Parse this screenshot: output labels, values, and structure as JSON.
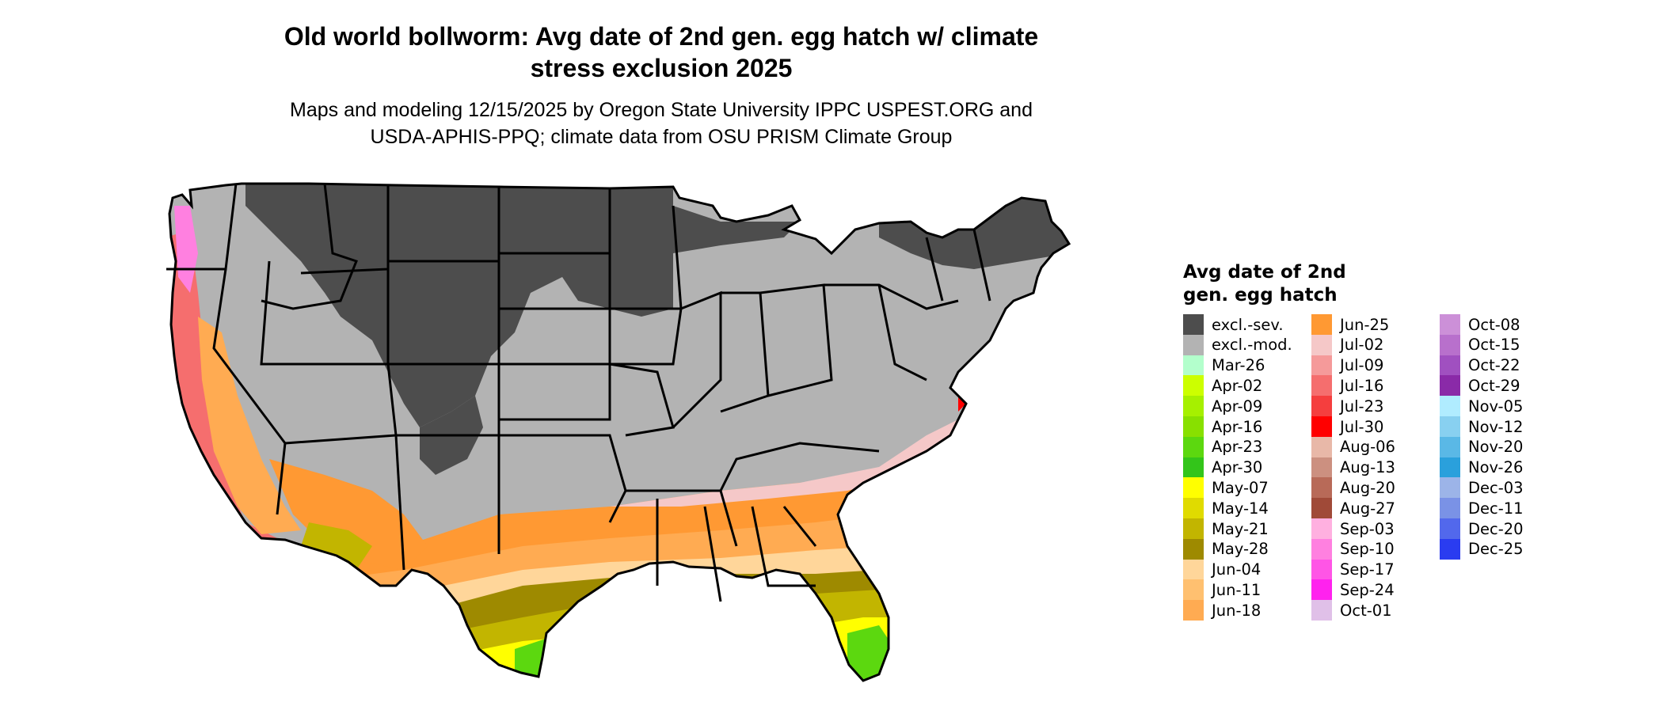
{
  "title": "Old world bollworm: Avg date of 2nd gen. egg hatch w/ climate stress exclusion 2025",
  "title_line1": "Old world bollworm: Avg date of 2nd gen. egg hatch w/ climate",
  "title_line2": "stress exclusion 2025",
  "subtitle_line1": "Maps and modeling 12/15/2025 by Oregon State University IPPC USPEST.ORG and",
  "subtitle_line2": "USDA-APHIS-PPQ; climate data from OSU PRISM Climate Group",
  "legend": {
    "title_line1": "Avg date of 2nd",
    "title_line2": "gen. egg hatch",
    "columns": [
      [
        {
          "label": "excl.-sev.",
          "color": "#4d4d4d"
        },
        {
          "label": "excl.-mod.",
          "color": "#b3b3b3"
        },
        {
          "label": "Mar-26",
          "color": "#b3ffcc"
        },
        {
          "label": "Apr-02",
          "color": "#ccff00"
        },
        {
          "label": "Apr-09",
          "color": "#a6f000"
        },
        {
          "label": "Apr-16",
          "color": "#88e000"
        },
        {
          "label": "Apr-23",
          "color": "#5cd80f"
        },
        {
          "label": "Apr-30",
          "color": "#33c51a"
        },
        {
          "label": "May-07",
          "color": "#ffff00"
        },
        {
          "label": "May-14",
          "color": "#e0db00"
        },
        {
          "label": "May-21",
          "color": "#c2b500"
        },
        {
          "label": "May-28",
          "color": "#9e8a00"
        },
        {
          "label": "Jun-04",
          "color": "#ffd69a"
        },
        {
          "label": "Jun-11",
          "color": "#ffc070"
        },
        {
          "label": "Jun-18",
          "color": "#ffab52"
        }
      ],
      [
        {
          "label": "Jun-25",
          "color": "#ff9933"
        },
        {
          "label": "Jul-02",
          "color": "#f5c8c8"
        },
        {
          "label": "Jul-09",
          "color": "#f59a9a"
        },
        {
          "label": "Jul-16",
          "color": "#f56e6e"
        },
        {
          "label": "Jul-23",
          "color": "#f53e3e"
        },
        {
          "label": "Jul-30",
          "color": "#ff0000"
        },
        {
          "label": "Aug-06",
          "color": "#e8b8a8"
        },
        {
          "label": "Aug-13",
          "color": "#cc9080"
        },
        {
          "label": "Aug-20",
          "color": "#b86a58"
        },
        {
          "label": "Aug-27",
          "color": "#a04a38"
        },
        {
          "label": "Sep-03",
          "color": "#ffb0e0"
        },
        {
          "label": "Sep-10",
          "color": "#ff80e0"
        },
        {
          "label": "Sep-17",
          "color": "#ff55e6"
        },
        {
          "label": "Sep-24",
          "color": "#ff22ee"
        },
        {
          "label": "Oct-01",
          "color": "#e0c0e8"
        }
      ],
      [
        {
          "label": "Oct-08",
          "color": "#cc90d8"
        },
        {
          "label": "Oct-15",
          "color": "#b870cc"
        },
        {
          "label": "Oct-22",
          "color": "#a050c0"
        },
        {
          "label": "Oct-29",
          "color": "#8a2aa8"
        },
        {
          "label": "Nov-05",
          "color": "#b0ecff"
        },
        {
          "label": "Nov-12",
          "color": "#88d0f0"
        },
        {
          "label": "Nov-20",
          "color": "#5ab8e6"
        },
        {
          "label": "Nov-26",
          "color": "#2aa0dc"
        },
        {
          "label": "Dec-03",
          "color": "#9cb4e8"
        },
        {
          "label": "Dec-11",
          "color": "#7a92e6"
        },
        {
          "label": "Dec-20",
          "color": "#5268ec"
        },
        {
          "label": "Dec-25",
          "color": "#2a3cf0"
        }
      ]
    ]
  }
}
